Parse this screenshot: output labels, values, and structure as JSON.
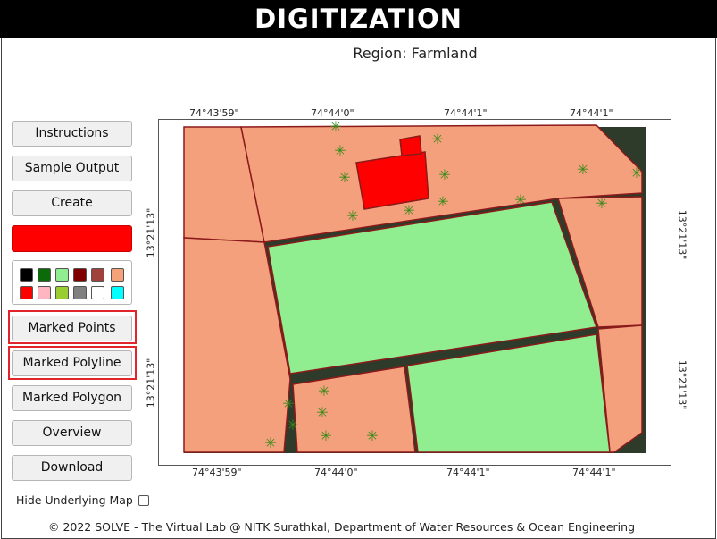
{
  "header": {
    "title": "DIGITIZATION"
  },
  "region": {
    "label": "Region: Farmland"
  },
  "sidebar": {
    "buttons": {
      "instructions": "Instructions",
      "sample_output": "Sample Output",
      "create": "Create",
      "marked_points": "Marked Points",
      "marked_polyline": "Marked Polyline",
      "marked_polygon": "Marked Polygon",
      "overview": "Overview",
      "download": "Download"
    },
    "selected_color": "#ff0000",
    "palette": [
      "#000000",
      "#0b6b0b",
      "#90ee90",
      "#800000",
      "#a0413c",
      "#f5a27a",
      "#ff0000",
      "#ffb6c1",
      "#9acd32",
      "#808080",
      "#ffffff",
      "#00ffff"
    ],
    "hide_map_label": "Hide Underlying Map",
    "hide_map_checked": false
  },
  "map": {
    "top_coords": [
      "74°43'59\"",
      "74°44'0\"",
      "74°44'1\"",
      "74°44'1\""
    ],
    "bottom_coords": [
      "74°43'59\"",
      "74°44'0\"",
      "74°44'1\"",
      "74°44'1\""
    ],
    "left_coords": [
      "13°21'13\"",
      "13°21'13\""
    ],
    "right_coords": [
      "13°21'13\"",
      "13°21'13\""
    ],
    "colors": {
      "salmon": "#f4a07d",
      "green": "#90ee90",
      "red": "#ff0000",
      "outline": "#8b1a1a",
      "marker": "#3a8a1a"
    }
  },
  "footer": {
    "text": "© 2022 SOLVE - The Virtual Lab @ NITK Surathkal, Department of Water Resources & Ocean Engineering"
  }
}
